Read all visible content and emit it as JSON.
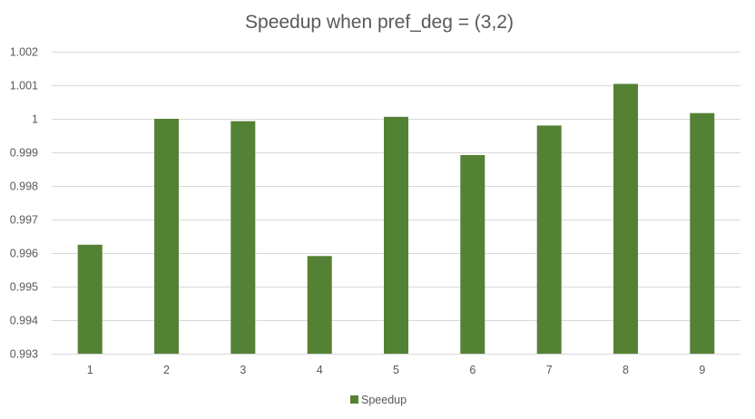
{
  "chart_data": {
    "type": "bar",
    "title": "Speedup when pref_deg = (3,2)",
    "xlabel": "",
    "ylabel": "",
    "categories": [
      "1",
      "2",
      "3",
      "4",
      "5",
      "6",
      "7",
      "8",
      "9"
    ],
    "series": [
      {
        "name": "Speedup",
        "color": "#548235",
        "values": [
          0.99625,
          1.0,
          0.99993,
          0.99591,
          1.00006,
          0.99892,
          0.9998,
          1.00104,
          1.00017
        ]
      }
    ],
    "ylim": [
      0.993,
      1.002
    ],
    "yticks": [
      {
        "value": 1.002,
        "label": "1.002"
      },
      {
        "value": 1.001,
        "label": "1.001"
      },
      {
        "value": 1.0,
        "label": "1"
      },
      {
        "value": 0.999,
        "label": "0.999"
      },
      {
        "value": 0.998,
        "label": "0.998"
      },
      {
        "value": 0.997,
        "label": "0.997"
      },
      {
        "value": 0.996,
        "label": "0.996"
      },
      {
        "value": 0.995,
        "label": "0.995"
      },
      {
        "value": 0.994,
        "label": "0.994"
      },
      {
        "value": 0.993,
        "label": "0.993"
      }
    ],
    "grid": true,
    "legend": "bottom",
    "legend_label": "Speedup"
  }
}
